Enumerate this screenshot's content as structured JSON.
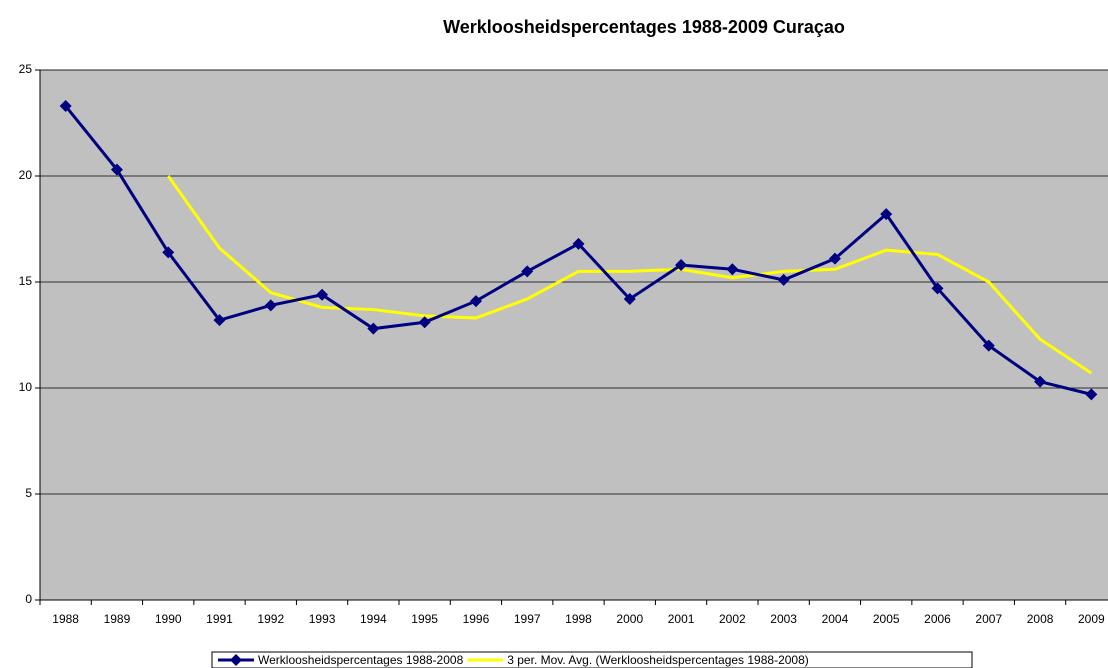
{
  "chart_data": {
    "type": "line",
    "title": "Werkloosheidspercentages 1988-2009 Curaçao",
    "categories": [
      "1988",
      "1989",
      "1990",
      "1991",
      "1992",
      "1993",
      "1994",
      "1995",
      "1996",
      "1997",
      "1998",
      "2000",
      "2001",
      "2002",
      "2003",
      "2004",
      "2005",
      "2006",
      "2007",
      "2008",
      "2009"
    ],
    "series": [
      {
        "name": "Werkloosheidspercentages 1988-2008",
        "color": "#000080",
        "marker": "diamond",
        "values": [
          23.3,
          20.3,
          16.4,
          13.2,
          13.9,
          14.4,
          12.8,
          13.1,
          14.1,
          15.5,
          16.8,
          14.2,
          15.8,
          15.6,
          15.1,
          16.1,
          18.2,
          14.7,
          12.0,
          10.3,
          9.7
        ]
      },
      {
        "name": "3 per. Mov. Avg. (Werkloosheidspercentages 1988-2008)",
        "color": "#ffff00",
        "marker": "none",
        "values": [
          null,
          null,
          20.0,
          16.6,
          14.5,
          13.8,
          13.7,
          13.4,
          13.3,
          14.2,
          15.5,
          15.5,
          15.6,
          15.2,
          15.5,
          15.6,
          16.5,
          16.3,
          15.0,
          12.3,
          10.7
        ]
      }
    ],
    "ylim": [
      0,
      25
    ],
    "yticks": [
      0,
      5,
      10,
      15,
      20,
      25
    ],
    "grid": true,
    "legend": "bottom"
  }
}
